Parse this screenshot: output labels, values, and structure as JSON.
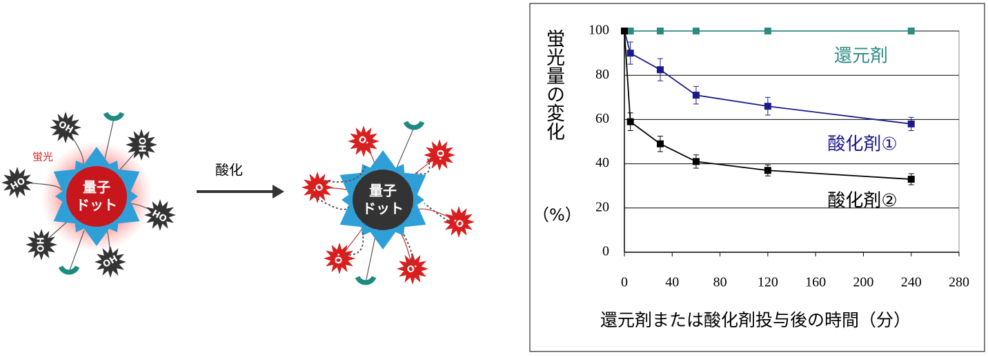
{
  "diagram": {
    "left": {
      "fluorescence": "蛍光",
      "core": [
        "量子",
        "ドット"
      ],
      "groups": [
        "OH",
        "OH",
        "OH",
        "OH",
        "OH",
        "OH"
      ]
    },
    "arrow": "酸化",
    "right": {
      "core": [
        "量子",
        "ドット"
      ],
      "groups": [
        "O·",
        "O·",
        "O·",
        "O·",
        "O·",
        "O·"
      ]
    }
  },
  "chart_data": {
    "type": "line",
    "y_label": "蛍光量の変化",
    "y_unit": "（%）",
    "x_label": "還元剤または酸化剤投与後の時間（分）",
    "x": [
      0,
      5,
      30,
      60,
      120,
      240
    ],
    "xlim": [
      0,
      280
    ],
    "xticks": [
      0,
      40,
      80,
      120,
      160,
      200,
      240,
      280
    ],
    "ylim": [
      0,
      100
    ],
    "yticks": [
      0,
      20,
      40,
      60,
      80,
      100
    ],
    "grid": true,
    "series": [
      {
        "name": "還元剤",
        "color": "#2e8b84",
        "values": [
          100,
          100,
          100,
          100,
          100,
          100
        ],
        "errors": [
          null,
          null,
          null,
          null,
          null,
          null
        ]
      },
      {
        "name": "酸化剤①",
        "color": "#1a1a8c",
        "values": [
          100,
          90,
          82.5,
          71,
          66,
          58
        ],
        "errors": [
          null,
          5,
          5,
          4,
          4,
          3
        ]
      },
      {
        "name": "酸化剤②",
        "color": "#000000",
        "values": [
          100,
          59,
          49,
          41,
          37,
          33
        ],
        "errors": [
          null,
          4,
          3.5,
          3,
          2.5,
          2.5
        ]
      }
    ]
  }
}
